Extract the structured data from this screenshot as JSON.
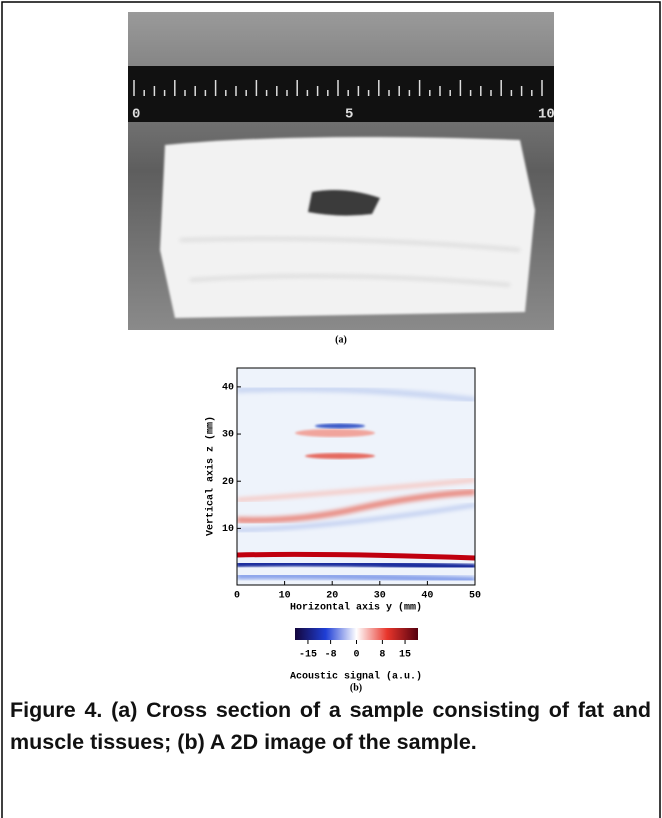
{
  "panel_a": {
    "ruler_labels": [
      "0",
      "5",
      "10"
    ],
    "label": "(a)"
  },
  "chart_data": {
    "type": "heatmap",
    "xlabel": "Horizontal axis y (mm)",
    "ylabel": "Vertical axis z (mm)",
    "xlim": [
      0,
      50
    ],
    "xticks": [
      0,
      10,
      20,
      30,
      40,
      50
    ],
    "ylim": [
      -2,
      44
    ],
    "yticks": [
      10,
      20,
      30,
      40
    ],
    "colorbar": {
      "label": "Acoustic signal (a.u.)",
      "lim": [
        -19,
        19
      ],
      "ticks": [
        -15,
        -8,
        0,
        8,
        15
      ],
      "colors": [
        "#14063c",
        "#1f3fd6",
        "#ffffff",
        "#e8352b",
        "#55000f"
      ]
    },
    "panel_label": "(b)"
  },
  "caption": "Figure 4. (a) Cross section of a sample consisting of fat and muscle tissues; (b) A 2D image of the sample."
}
